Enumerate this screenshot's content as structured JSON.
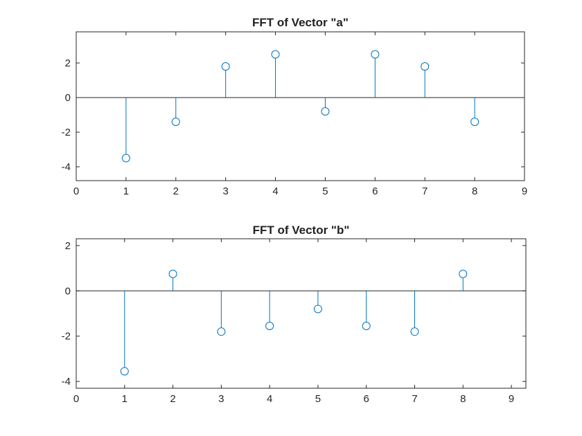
{
  "chart_data": [
    {
      "type": "stem",
      "title": "FFT of Vector \"a\"",
      "xlabel": "",
      "ylabel": "",
      "xlim": [
        0,
        9
      ],
      "ylim": [
        -4.8,
        3.8
      ],
      "xticks": [
        "0",
        "1",
        "2",
        "3",
        "4",
        "5",
        "6",
        "7",
        "8",
        "9"
      ],
      "yticks": [
        "-4",
        "-2",
        "0",
        "2"
      ],
      "x": [
        1,
        2,
        3,
        4,
        5,
        6,
        7,
        8
      ],
      "values": [
        -3.5,
        -1.4,
        1.8,
        2.5,
        -0.8,
        2.5,
        1.8,
        -1.4
      ],
      "color": "#0072bd",
      "grid": false
    },
    {
      "type": "stem",
      "title": "FFT of Vector \"b\"",
      "xlabel": "",
      "ylabel": "",
      "xlim": [
        0,
        9.3
      ],
      "ylim": [
        -4.3,
        2.3
      ],
      "xticks": [
        "0",
        "1",
        "2",
        "3",
        "4",
        "5",
        "6",
        "7",
        "8",
        "9"
      ],
      "yticks": [
        "-4",
        "-2",
        "0",
        "2"
      ],
      "x": [
        1,
        2,
        3,
        4,
        5,
        6,
        7,
        8
      ],
      "values": [
        -3.55,
        0.75,
        -1.8,
        -1.55,
        -0.8,
        -1.55,
        -1.8,
        0.75
      ],
      "color": "#0072bd",
      "grid": false
    }
  ]
}
